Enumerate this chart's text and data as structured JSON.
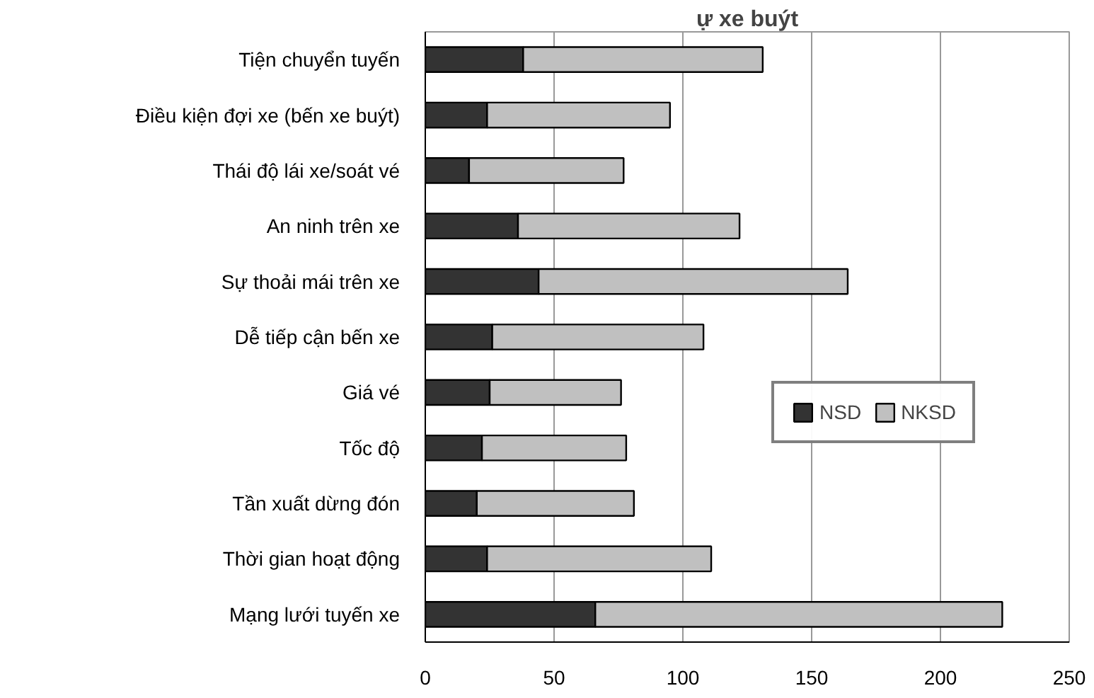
{
  "chart_data": {
    "type": "bar",
    "orientation": "horizontal",
    "stacked": true,
    "title": "ự xe buýt",
    "categories": [
      "Tiện chuyển tuyến",
      "Điều kiện đợi xe (bến xe buýt)",
      "Thái độ lái xe/soát vé",
      "An ninh trên xe",
      "Sự thoải mái trên xe",
      "Dễ tiếp cận bến xe",
      "Giá vé",
      "Tốc độ",
      "Tần xuất dừng đón",
      "Thời gian hoạt động",
      "Mạng lưới tuyến xe"
    ],
    "series": [
      {
        "name": "NSD",
        "color": "#333333",
        "values": [
          38,
          24,
          17,
          36,
          44,
          26,
          25,
          22,
          20,
          24,
          66
        ]
      },
      {
        "name": "NKSD",
        "color": "#c0c0c0",
        "values": [
          93,
          71,
          60,
          86,
          120,
          82,
          51,
          56,
          61,
          87,
          158
        ]
      }
    ],
    "xlim": [
      0,
      250
    ],
    "xticks": [
      0,
      50,
      100,
      150,
      200,
      250
    ],
    "grid": "x",
    "legend": "right"
  }
}
